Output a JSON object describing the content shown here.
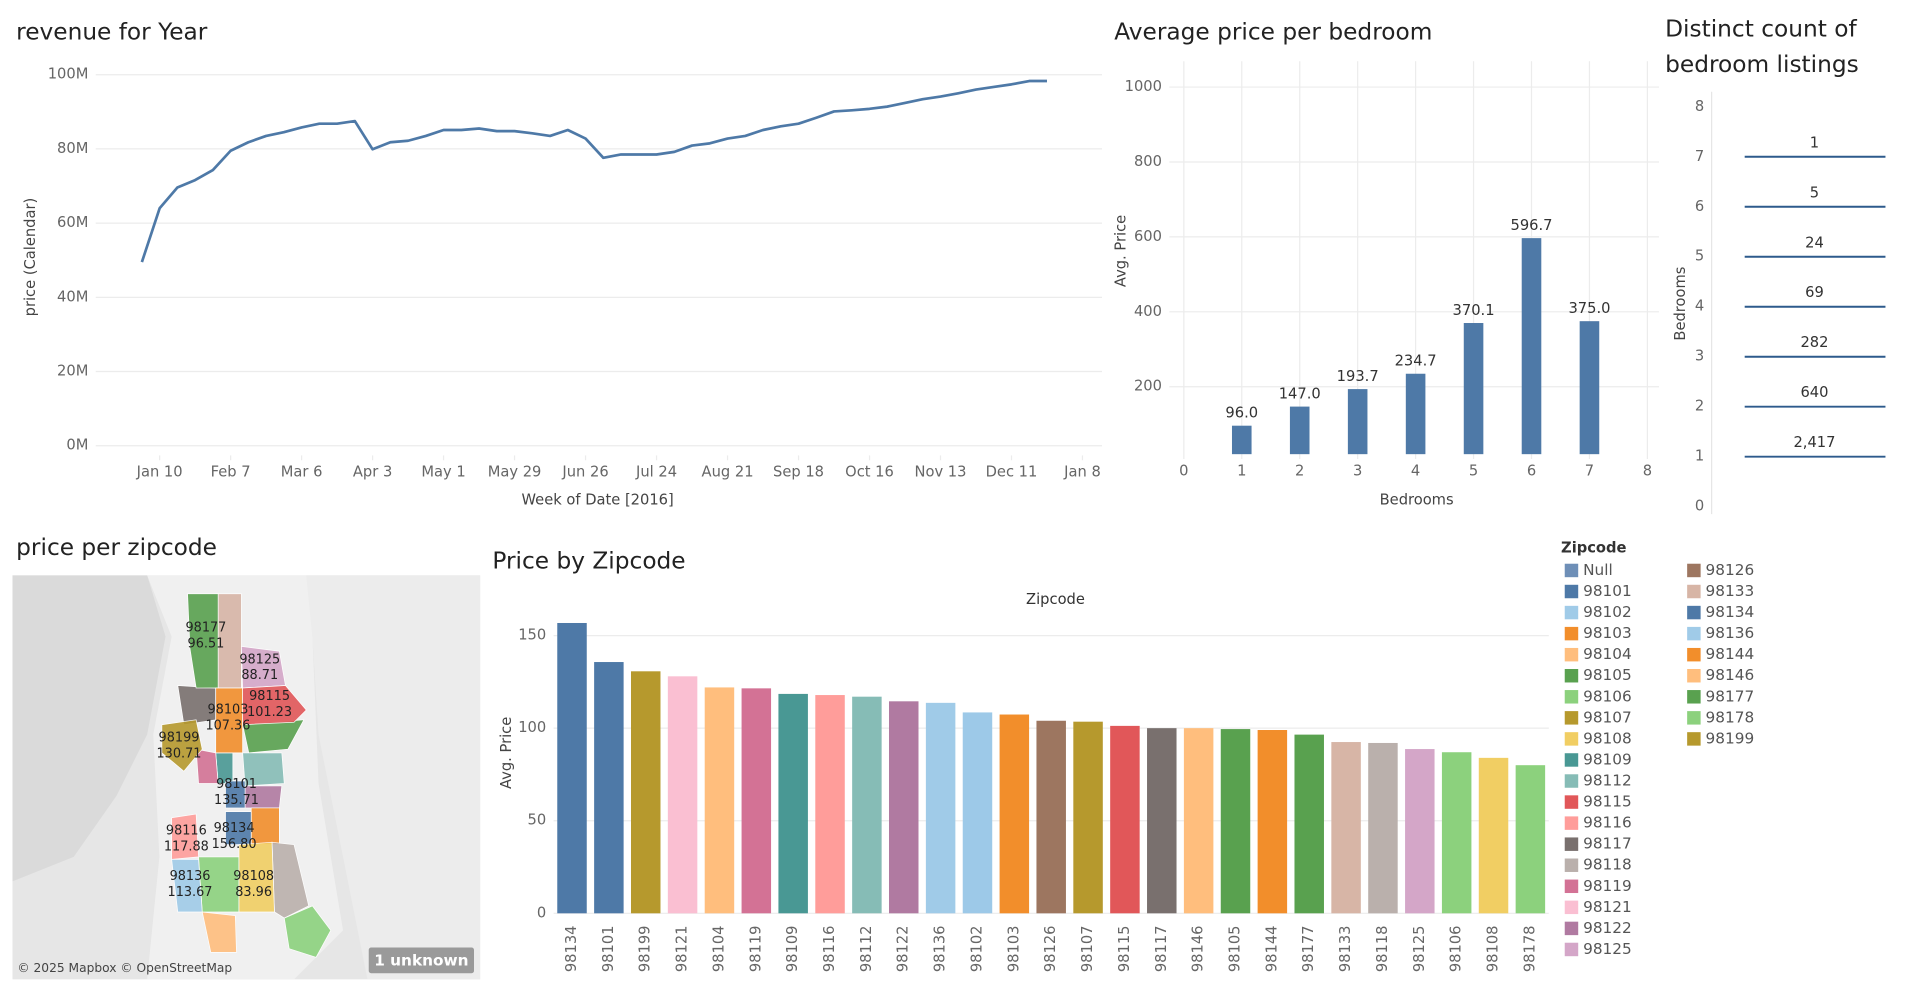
{
  "chart_data": [
    {
      "type": "line",
      "title": "revenue for Year",
      "x_label": "Week of Date [2016]",
      "y_label": "price (Calendar)",
      "color": "#4e79a7",
      "x": [
        0,
        1,
        2,
        3,
        4,
        5,
        6,
        7,
        8,
        9,
        10,
        11,
        12,
        13,
        14,
        15,
        16,
        17,
        18,
        19,
        20,
        21,
        22,
        23,
        24,
        25,
        26,
        27,
        28,
        29,
        30,
        31,
        32,
        33,
        34,
        35,
        36,
        37,
        38,
        39,
        40,
        41,
        42,
        43,
        44,
        45,
        46,
        47,
        48,
        49,
        50,
        51
      ],
      "values": [
        49.5,
        64,
        69.6,
        71.6,
        74.3,
        79.5,
        81.8,
        83.5,
        84.5,
        85.8,
        86.8,
        86.8,
        87.5,
        79.9,
        81.8,
        82.2,
        83.5,
        85.1,
        85.1,
        85.5,
        84.8,
        84.8,
        84.2,
        83.5,
        85.1,
        82.8,
        77.6,
        78.5,
        78.5,
        78.5,
        79.2,
        80.9,
        81.5,
        82.8,
        83.5,
        85.1,
        86.1,
        86.8,
        88.4,
        90.1,
        90.4,
        90.8,
        91.4,
        92.4,
        93.4,
        94.1,
        95.0,
        96.0,
        96.7,
        97.4,
        98.3,
        98.3
      ],
      "xlim": [
        -2.6,
        54.1
      ],
      "xticks": [
        {
          "value": 1,
          "label": "Jan 10"
        },
        {
          "value": 5,
          "label": "Feb 7"
        },
        {
          "value": 9,
          "label": "Mar 6"
        },
        {
          "value": 13,
          "label": "Apr 3"
        },
        {
          "value": 17,
          "label": "May 1"
        },
        {
          "value": 21,
          "label": "May 29"
        },
        {
          "value": 25,
          "label": "Jun 26"
        },
        {
          "value": 29,
          "label": "Jul 24"
        },
        {
          "value": 33,
          "label": "Aug 21"
        },
        {
          "value": 37,
          "label": "Sep 18"
        },
        {
          "value": 41,
          "label": "Oct 16"
        },
        {
          "value": 45,
          "label": "Nov 13"
        },
        {
          "value": 49,
          "label": "Dec 11"
        },
        {
          "value": 53,
          "label": "Jan 8"
        }
      ],
      "ylim": [
        -2.6,
        104.3
      ],
      "yticks": [
        {
          "value": 0,
          "label": "0M"
        },
        {
          "value": 20,
          "label": "20M"
        },
        {
          "value": 40,
          "label": "40M"
        },
        {
          "value": 60,
          "label": "60M"
        },
        {
          "value": 80,
          "label": "80M"
        },
        {
          "value": 100,
          "label": "100M"
        }
      ],
      "grid": true
    },
    {
      "type": "bar",
      "title": "Average price per bedroom",
      "x_label": "Bedrooms",
      "y_label": "Avg. Price",
      "color": "#4e79a7",
      "x": [
        1,
        2,
        3,
        4,
        5,
        6,
        7
      ],
      "values": [
        96.0,
        147.0,
        193.7,
        234.7,
        370.1,
        596.7,
        375.0
      ],
      "value_labels": [
        "96.0",
        "147.0",
        "193.7",
        "234.7",
        "370.1",
        "596.7",
        "375.0"
      ],
      "xlim": [
        -0.25,
        8.2
      ],
      "xticks": [
        0,
        1,
        2,
        3,
        4,
        5,
        6,
        7,
        8
      ],
      "ylim": [
        20,
        1069
      ],
      "yticks": [
        200,
        400,
        600,
        800,
        1000
      ],
      "grid": true
    },
    {
      "type": "tick",
      "title": "Distinct count of bedroom listings",
      "y_label": "Bedrooms",
      "color": "#2d5a8c",
      "y": [
        7,
        6,
        5,
        4,
        3,
        2,
        1
      ],
      "values": [
        1,
        5,
        24,
        69,
        282,
        640,
        2417
      ],
      "value_labels": [
        "1",
        "5",
        "24",
        "69",
        "282",
        "640",
        "2,417"
      ],
      "ylim": [
        -0.15,
        8.3
      ],
      "yticks": [
        0,
        1,
        2,
        3,
        4,
        5,
        6,
        7,
        8
      ]
    },
    {
      "type": "map",
      "title": "price per zipcode",
      "attribution": "© 2025 Mapbox © OpenStreetMap",
      "unknown_label": "1 unknown",
      "regions": [
        {
          "label": "98177",
          "value": 96.51,
          "color": "#59a14f"
        },
        {
          "label": "98125",
          "value": 88.71,
          "color": "#d4a6c8"
        },
        {
          "label": "98103",
          "value": 107.36,
          "color": "#f28e2b"
        },
        {
          "label": "98115",
          "value": 101.23,
          "color": "#e15759"
        },
        {
          "label": "98199",
          "value": 130.71,
          "color": "#b6992d"
        },
        {
          "label": "98101",
          "value": 135.71,
          "color": "#4e79a7"
        },
        {
          "label": "98116",
          "value": 117.88,
          "color": "#ff9d9a"
        },
        {
          "label": "98134",
          "value": 156.8,
          "value_label": "156.80",
          "color": "#4e79a7"
        },
        {
          "label": "98136",
          "value": 113.67,
          "color": "#a0cbe8"
        },
        {
          "label": "98108",
          "value": 83.96,
          "color": "#f1ce63"
        }
      ]
    },
    {
      "type": "bar",
      "title": "Price by Zipcode",
      "x_label": "Zipcode",
      "y_label": "Avg. Price",
      "categories": [
        "98134",
        "98101",
        "98199",
        "98121",
        "98104",
        "98119",
        "98109",
        "98116",
        "98112",
        "98122",
        "98136",
        "98102",
        "98103",
        "98126",
        "98107",
        "98115",
        "98117",
        "98146",
        "98105",
        "98144",
        "98177",
        "98133",
        "98118",
        "98125",
        "98106",
        "98108",
        "98178"
      ],
      "values": [
        156.8,
        135.71,
        130.71,
        128,
        122,
        121.5,
        118.5,
        117.88,
        117,
        114.5,
        113.67,
        108.5,
        107.36,
        104,
        103.5,
        101.23,
        100,
        100,
        99.5,
        99,
        96.51,
        92.5,
        92,
        88.71,
        87,
        83.96,
        80
      ],
      "colors": [
        "#4e79a7",
        "#4e79a7",
        "#b6992d",
        "#fabfd2",
        "#ffbe7d",
        "#d37295",
        "#499894",
        "#ff9d9a",
        "#86bcb6",
        "#b07aa1",
        "#a0cbe8",
        "#9dc9e8",
        "#f28e2b",
        "#9d7660",
        "#b6992d",
        "#e15759",
        "#79706e",
        "#ffbe7d",
        "#59a14f",
        "#f28e2b",
        "#59a14f",
        "#d7b5a6",
        "#bab0ac",
        "#d4a6c8",
        "#8cd17d",
        "#f1ce63",
        "#8cd17d"
      ],
      "ylim": [
        -2.6,
        166
      ],
      "yticks": [
        0,
        50,
        100,
        150
      ],
      "grid": true,
      "legend_title": "Zipcode",
      "legend": [
        {
          "name": "Null",
          "color": "#6e8fb7"
        },
        {
          "name": "98101",
          "color": "#4e79a7"
        },
        {
          "name": "98102",
          "color": "#a0cbe8"
        },
        {
          "name": "98103",
          "color": "#f28e2b"
        },
        {
          "name": "98104",
          "color": "#ffbe7d"
        },
        {
          "name": "98105",
          "color": "#59a14f"
        },
        {
          "name": "98106",
          "color": "#8cd17d"
        },
        {
          "name": "98107",
          "color": "#b6992d"
        },
        {
          "name": "98108",
          "color": "#f1ce63"
        },
        {
          "name": "98109",
          "color": "#499894"
        },
        {
          "name": "98112",
          "color": "#86bcb6"
        },
        {
          "name": "98115",
          "color": "#e15759"
        },
        {
          "name": "98116",
          "color": "#ff9d9a"
        },
        {
          "name": "98117",
          "color": "#79706e"
        },
        {
          "name": "98118",
          "color": "#bab0ac"
        },
        {
          "name": "98119",
          "color": "#d37295"
        },
        {
          "name": "98121",
          "color": "#fabfd2"
        },
        {
          "name": "98122",
          "color": "#b07aa1"
        },
        {
          "name": "98125",
          "color": "#d4a6c8"
        },
        {
          "name": "98126",
          "color": "#9d7660"
        },
        {
          "name": "98133",
          "color": "#d7b5a6"
        },
        {
          "name": "98134",
          "color": "#4e79a7"
        },
        {
          "name": "98136",
          "color": "#a0cbe8"
        },
        {
          "name": "98144",
          "color": "#f28e2b"
        },
        {
          "name": "98146",
          "color": "#ffbe7d"
        },
        {
          "name": "98177",
          "color": "#59a14f"
        },
        {
          "name": "98178",
          "color": "#8cd17d"
        },
        {
          "name": "98199",
          "color": "#b6992d"
        }
      ]
    }
  ]
}
